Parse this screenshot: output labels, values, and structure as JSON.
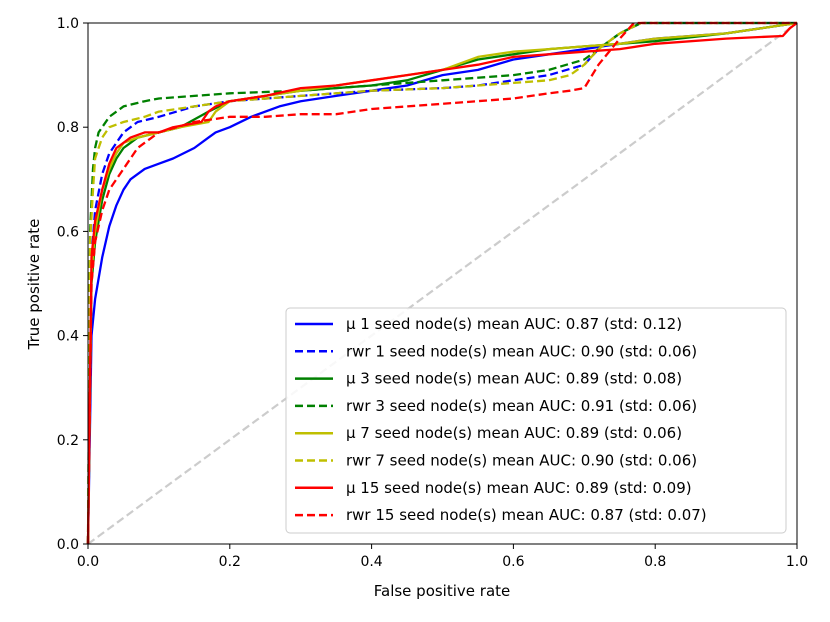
{
  "chart_data": {
    "type": "line",
    "title": "",
    "xlabel": "False positive rate",
    "ylabel": "True positive rate",
    "xlim": [
      0.0,
      1.0
    ],
    "ylim": [
      0.0,
      1.0
    ],
    "xticks": [
      "0.0",
      "0.2",
      "0.4",
      "0.6",
      "0.8",
      "1.0"
    ],
    "yticks": [
      "0.0",
      "0.2",
      "0.4",
      "0.6",
      "0.8",
      "1.0"
    ],
    "grid": false,
    "legend_position": "lower-right",
    "diagonal": {
      "x": [
        0,
        1
      ],
      "y": [
        0,
        1
      ],
      "color": "#cccccc",
      "style": "dashed"
    },
    "series": [
      {
        "name": "μ 1 seed node(s) mean AUC: 0.87 (std: 0.12)",
        "color": "#0000ff",
        "style": "solid",
        "x": [
          0,
          0.005,
          0.01,
          0.02,
          0.03,
          0.04,
          0.05,
          0.06,
          0.08,
          0.1,
          0.12,
          0.15,
          0.17,
          0.18,
          0.2,
          0.23,
          0.27,
          0.3,
          0.35,
          0.4,
          0.45,
          0.5,
          0.55,
          0.6,
          0.65,
          0.7,
          0.75,
          0.8,
          0.85,
          0.9,
          0.95,
          1.0
        ],
        "y": [
          0,
          0.4,
          0.47,
          0.55,
          0.61,
          0.65,
          0.68,
          0.7,
          0.72,
          0.73,
          0.74,
          0.76,
          0.78,
          0.79,
          0.8,
          0.82,
          0.84,
          0.85,
          0.86,
          0.87,
          0.88,
          0.9,
          0.91,
          0.93,
          0.94,
          0.95,
          0.96,
          0.97,
          0.975,
          0.98,
          0.99,
          1.0
        ]
      },
      {
        "name": "rwr 1 seed node(s) mean AUC: 0.90 (std: 0.06)",
        "color": "#0000ff",
        "style": "dashed",
        "x": [
          0,
          0.005,
          0.01,
          0.02,
          0.03,
          0.05,
          0.07,
          0.1,
          0.15,
          0.2,
          0.3,
          0.4,
          0.5,
          0.55,
          0.6,
          0.65,
          0.7,
          0.72,
          0.75,
          0.78,
          0.8,
          1.0
        ],
        "y": [
          0,
          0.55,
          0.64,
          0.71,
          0.75,
          0.79,
          0.81,
          0.82,
          0.84,
          0.85,
          0.86,
          0.87,
          0.875,
          0.88,
          0.89,
          0.9,
          0.92,
          0.95,
          0.98,
          1.0,
          1.0,
          1.0
        ]
      },
      {
        "name": "μ 3 seed node(s) mean AUC: 0.89 (std: 0.08)",
        "color": "#008000",
        "style": "solid",
        "x": [
          0,
          0.005,
          0.01,
          0.02,
          0.03,
          0.04,
          0.05,
          0.07,
          0.1,
          0.13,
          0.17,
          0.2,
          0.25,
          0.3,
          0.35,
          0.4,
          0.45,
          0.5,
          0.55,
          0.6,
          0.65,
          0.7,
          0.75,
          0.8,
          0.9,
          1.0
        ],
        "y": [
          0,
          0.5,
          0.58,
          0.66,
          0.71,
          0.74,
          0.76,
          0.78,
          0.79,
          0.8,
          0.83,
          0.85,
          0.86,
          0.87,
          0.875,
          0.88,
          0.89,
          0.91,
          0.93,
          0.94,
          0.95,
          0.955,
          0.96,
          0.965,
          0.98,
          1.0
        ]
      },
      {
        "name": "rwr 3 seed node(s) mean AUC: 0.91 (std: 0.06)",
        "color": "#008000",
        "style": "dashed",
        "x": [
          0,
          0.003,
          0.007,
          0.01,
          0.015,
          0.02,
          0.03,
          0.05,
          0.08,
          0.1,
          0.15,
          0.2,
          0.3,
          0.4,
          0.5,
          0.6,
          0.65,
          0.7,
          0.72,
          0.75,
          0.78,
          0.8,
          1.0
        ],
        "y": [
          0,
          0.6,
          0.72,
          0.76,
          0.79,
          0.8,
          0.82,
          0.84,
          0.85,
          0.855,
          0.86,
          0.865,
          0.87,
          0.88,
          0.89,
          0.9,
          0.91,
          0.93,
          0.95,
          0.98,
          1.0,
          1.0,
          1.0
        ]
      },
      {
        "name": "μ 7 seed node(s) mean AUC: 0.89 (std: 0.06)",
        "color": "#bfbf00",
        "style": "solid",
        "x": [
          0,
          0.005,
          0.01,
          0.02,
          0.03,
          0.04,
          0.05,
          0.07,
          0.1,
          0.13,
          0.17,
          0.18,
          0.2,
          0.25,
          0.3,
          0.35,
          0.4,
          0.45,
          0.5,
          0.55,
          0.6,
          0.65,
          0.7,
          0.75,
          0.8,
          0.9,
          1.0
        ],
        "y": [
          0,
          0.52,
          0.6,
          0.68,
          0.72,
          0.75,
          0.77,
          0.78,
          0.79,
          0.8,
          0.81,
          0.83,
          0.85,
          0.86,
          0.87,
          0.88,
          0.89,
          0.9,
          0.91,
          0.935,
          0.945,
          0.95,
          0.955,
          0.96,
          0.97,
          0.98,
          1.0
        ]
      },
      {
        "name": "rwr 7 seed node(s) mean AUC: 0.90 (std: 0.06)",
        "color": "#bfbf00",
        "style": "dashed",
        "x": [
          0,
          0.003,
          0.007,
          0.01,
          0.015,
          0.02,
          0.03,
          0.05,
          0.08,
          0.1,
          0.15,
          0.2,
          0.3,
          0.4,
          0.5,
          0.55,
          0.6,
          0.65,
          0.68,
          0.7,
          0.72,
          0.75,
          0.78,
          0.8,
          1.0
        ],
        "y": [
          0,
          0.58,
          0.68,
          0.74,
          0.76,
          0.78,
          0.8,
          0.81,
          0.82,
          0.83,
          0.84,
          0.85,
          0.86,
          0.87,
          0.875,
          0.88,
          0.885,
          0.89,
          0.9,
          0.92,
          0.95,
          0.98,
          1.0,
          1.0,
          1.0
        ]
      },
      {
        "name": "μ 15 seed node(s) mean AUC: 0.89 (std: 0.09)",
        "color": "#ff0000",
        "style": "solid",
        "x": [
          0,
          0.005,
          0.01,
          0.02,
          0.03,
          0.04,
          0.05,
          0.06,
          0.08,
          0.1,
          0.12,
          0.14,
          0.16,
          0.17,
          0.18,
          0.2,
          0.25,
          0.3,
          0.35,
          0.4,
          0.45,
          0.5,
          0.55,
          0.6,
          0.65,
          0.7,
          0.75,
          0.8,
          0.9,
          0.98,
          0.99,
          1.0
        ],
        "y": [
          0,
          0.55,
          0.62,
          0.68,
          0.73,
          0.76,
          0.77,
          0.78,
          0.79,
          0.79,
          0.8,
          0.805,
          0.81,
          0.83,
          0.84,
          0.85,
          0.86,
          0.875,
          0.88,
          0.89,
          0.9,
          0.91,
          0.92,
          0.935,
          0.94,
          0.945,
          0.95,
          0.96,
          0.97,
          0.975,
          0.99,
          1.0
        ]
      },
      {
        "name": "rwr 15 seed node(s) mean AUC: 0.87 (std: 0.07)",
        "color": "#ff0000",
        "style": "dashed",
        "x": [
          0,
          0.005,
          0.01,
          0.02,
          0.03,
          0.05,
          0.07,
          0.1,
          0.15,
          0.2,
          0.25,
          0.3,
          0.35,
          0.4,
          0.5,
          0.6,
          0.65,
          0.68,
          0.7,
          0.72,
          0.75,
          0.77,
          0.8,
          1.0
        ],
        "y": [
          0,
          0.5,
          0.58,
          0.64,
          0.68,
          0.72,
          0.76,
          0.79,
          0.81,
          0.82,
          0.82,
          0.825,
          0.825,
          0.835,
          0.845,
          0.855,
          0.865,
          0.87,
          0.875,
          0.92,
          0.97,
          1.0,
          1.0,
          1.0
        ]
      }
    ]
  }
}
